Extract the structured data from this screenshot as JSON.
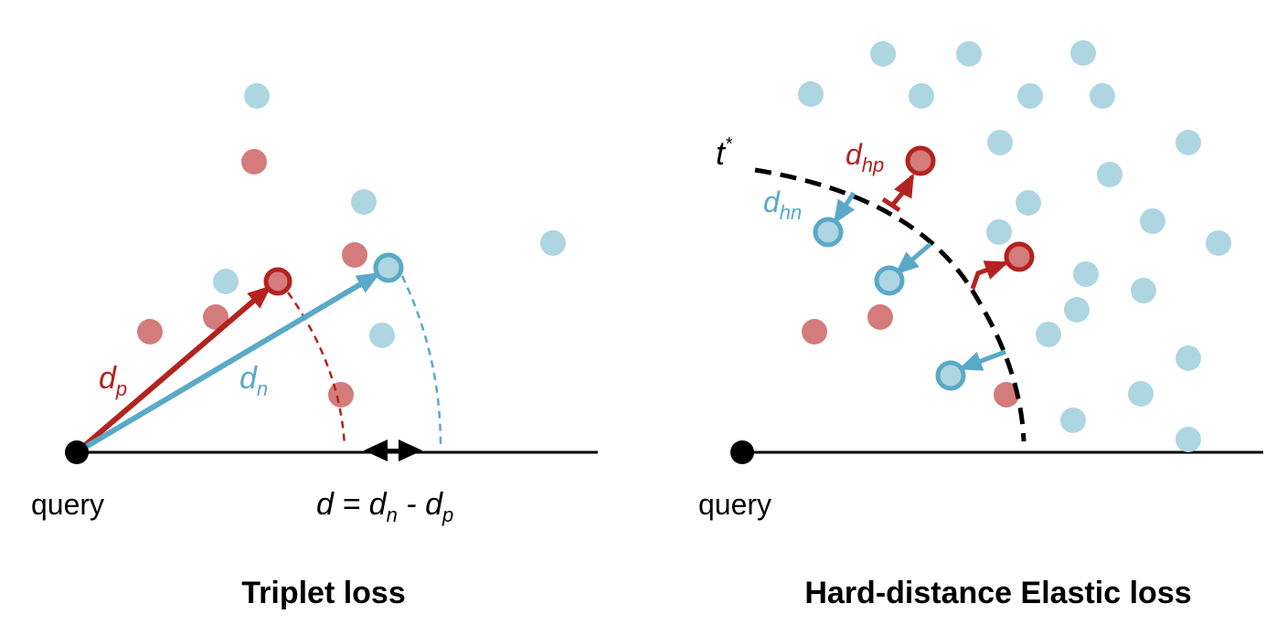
{
  "colors": {
    "positive": "#d47b7b",
    "negative": "#aed6e2",
    "positive_stroke": "#b3231f",
    "negative_stroke": "#5aa9c8",
    "axis": "#000000"
  },
  "left": {
    "title": "Triplet loss",
    "query_label": "query",
    "dp_main": "d",
    "dp_sub": "p",
    "dn_main": "d",
    "dn_sub": "n",
    "eq_d": "d",
    "eq_equals": " = ",
    "eq_dn_main": "d",
    "eq_dn_sub": "n",
    "eq_minus": " - ",
    "eq_dp_main": "d",
    "eq_dp_sub": "p"
  },
  "right": {
    "title": "Hard-distance Elastic loss",
    "query_label": "query",
    "t_main": "t",
    "t_sup": "*",
    "dhp_main": "d",
    "dhp_sub": "hp",
    "dhn_main": "d",
    "dhn_sub": "hn"
  }
}
